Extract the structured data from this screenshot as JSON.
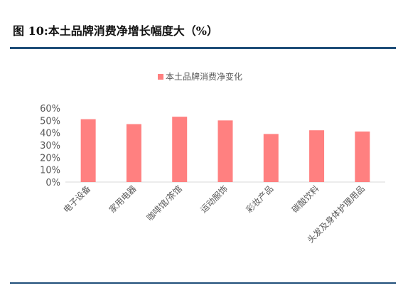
{
  "figure_title": "图 10:本土品牌消费净增长幅度大（%）",
  "colors": {
    "bar": "#ff8080",
    "rule": "#1f4e79",
    "axis": "#d9d9d9",
    "text": "#595959"
  },
  "chart_data": {
    "type": "bar",
    "title": "",
    "xlabel": "",
    "ylabel": "",
    "ylim": [
      0,
      60
    ],
    "ytick_step": 10,
    "ytick_format": "percent",
    "legend": "top-center",
    "grid": false,
    "categories": [
      "电子设备",
      "家用电器",
      "咖啡馆/茶馆",
      "运动服饰",
      "彩妆产品",
      "碳酸饮料",
      "头发及身体护理用品"
    ],
    "series": [
      {
        "name": "本土品牌消费净变化",
        "values": [
          51,
          47,
          53,
          50,
          39,
          42,
          41
        ]
      }
    ]
  }
}
